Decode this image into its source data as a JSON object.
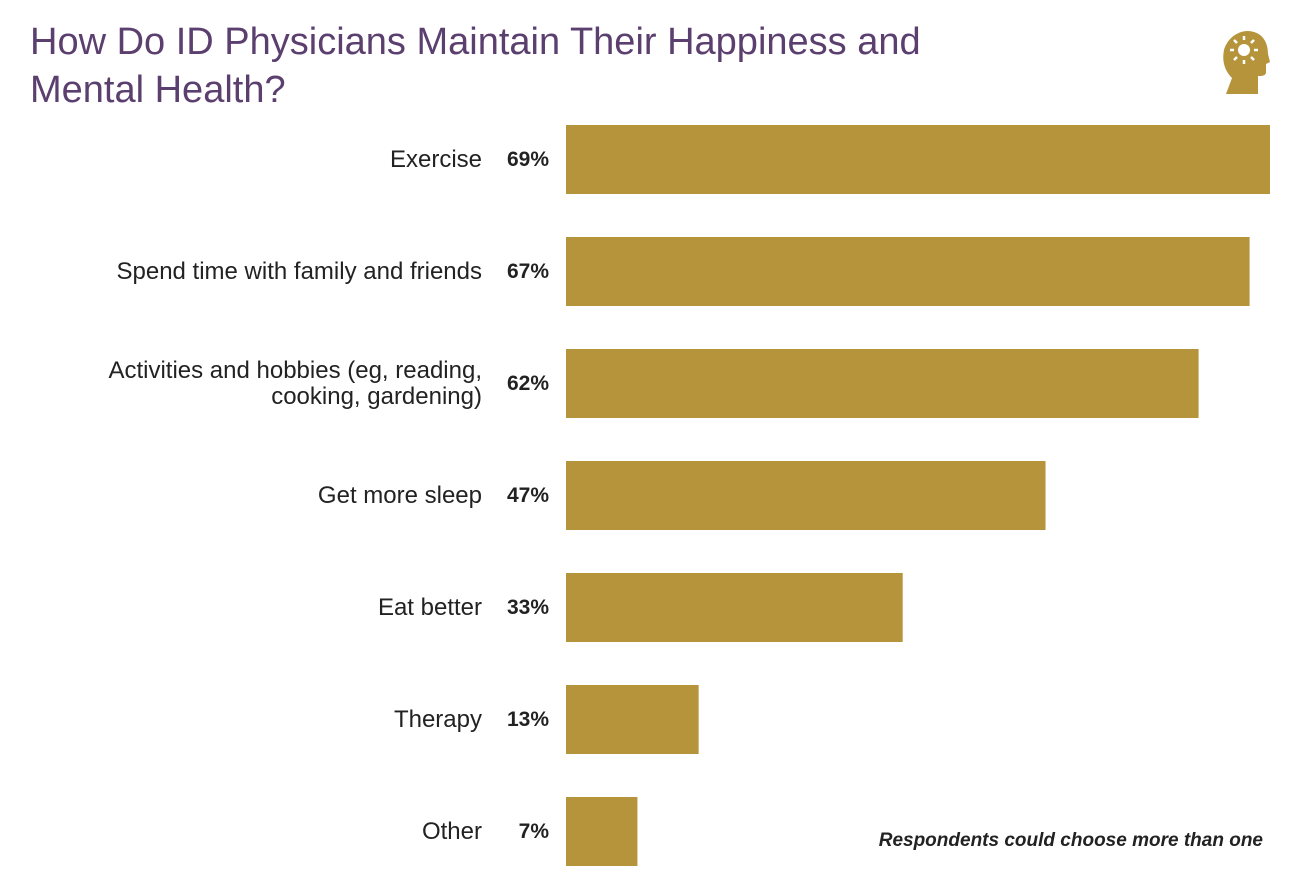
{
  "chart_data": {
    "type": "bar",
    "orientation": "horizontal",
    "title": "How Do ID Physicians Maintain Their Happiness and Mental Health?",
    "categories": [
      "Exercise",
      "Spend time with family and friends",
      "Activities and hobbies (eg, reading, cooking, gardening)",
      "Get more sleep",
      "Eat better",
      "Therapy",
      "Other"
    ],
    "values": [
      69,
      67,
      62,
      47,
      33,
      13,
      7
    ],
    "value_labels": [
      "69%",
      "67%",
      "62%",
      "47%",
      "33%",
      "13%",
      "7%"
    ],
    "color": "#b5943c",
    "note": "Respondents could choose more than one"
  }
}
